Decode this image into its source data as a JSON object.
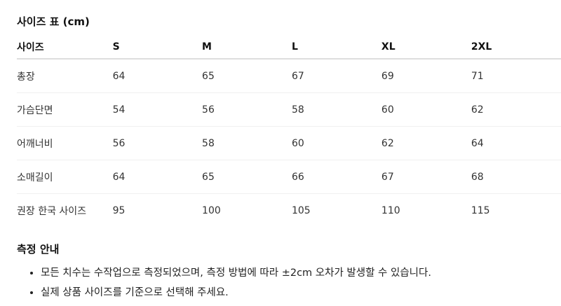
{
  "title": "사이즈 표 (cm)",
  "table": {
    "headers": [
      "사이즈",
      "S",
      "M",
      "L",
      "XL",
      "2XL"
    ],
    "rows": [
      [
        "총장",
        "64",
        "65",
        "67",
        "69",
        "71"
      ],
      [
        "가슴단면",
        "54",
        "56",
        "58",
        "60",
        "62"
      ],
      [
        "어깨너비",
        "56",
        "58",
        "60",
        "62",
        "64"
      ],
      [
        "소매길이",
        "64",
        "65",
        "66",
        "67",
        "68"
      ],
      [
        "권장 한국 사이즈",
        "95",
        "100",
        "105",
        "110",
        "115"
      ]
    ]
  },
  "notes": {
    "title": "측정 안내",
    "items": [
      "모든 치수는 수작업으로 측정되었으며, 측정 방법에 따라 ±2cm 오차가 발생할 수 있습니다.",
      "실제 상품 사이즈를 기준으로 선택해 주세요."
    ]
  }
}
